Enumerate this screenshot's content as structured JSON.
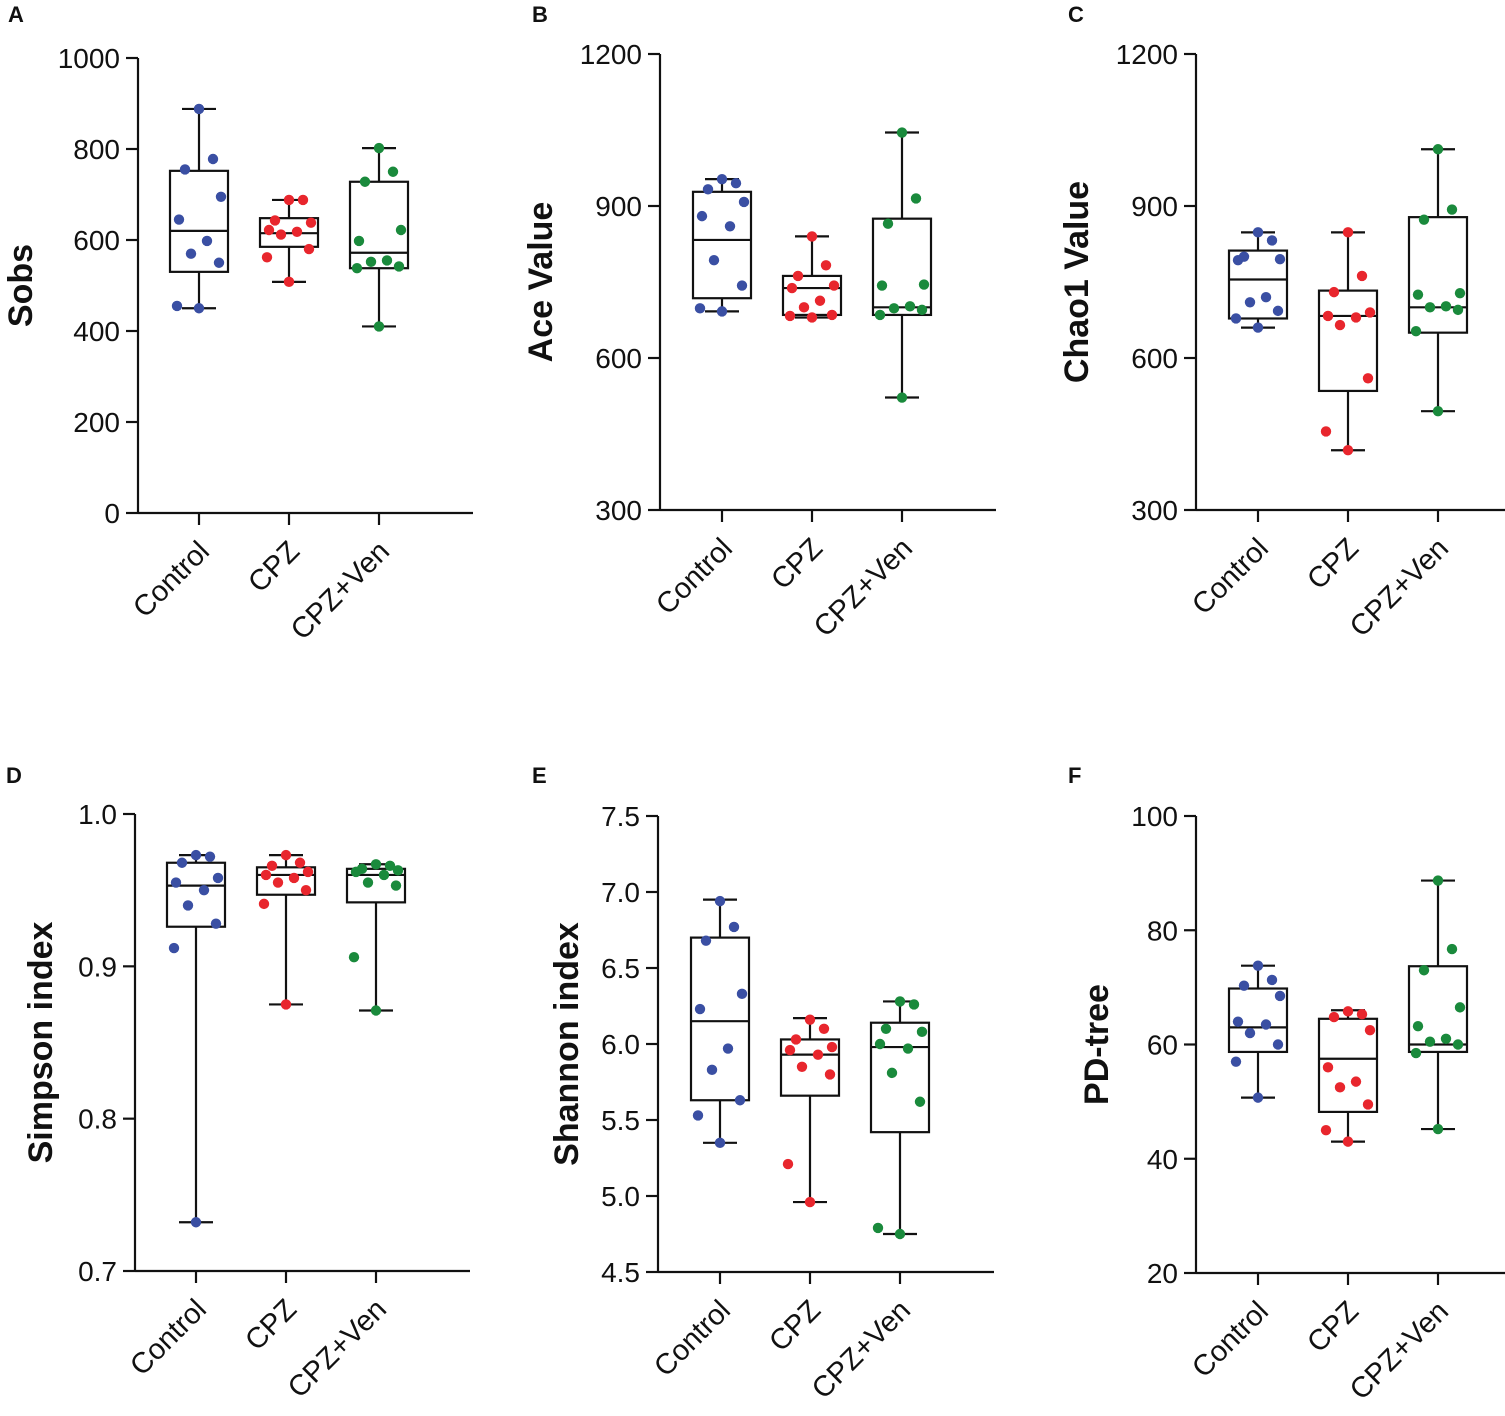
{
  "figure": {
    "categories": [
      "Control",
      "CPZ",
      "CPZ+Ven"
    ],
    "colors": {
      "Control": "#3a4fa3",
      "CPZ": "#e8262d",
      "CPZ+Ven": "#1a8a3c"
    }
  },
  "chart_data": [
    {
      "type": "box",
      "panel": "A",
      "ylabel": "Sobs",
      "ylim": [
        0,
        1000
      ],
      "yticks": [
        0,
        200,
        400,
        600,
        800,
        1000
      ],
      "yticklabels": [
        "0",
        "200",
        "400",
        "600",
        "800",
        "1000"
      ],
      "categories": [
        "Control",
        "CPZ",
        "CPZ+Ven"
      ],
      "series": [
        {
          "name": "Control",
          "box": {
            "min": 450,
            "q1": 530,
            "median": 620,
            "q3": 752,
            "max": 888
          },
          "points": [
            888,
            778,
            755,
            695,
            645,
            598,
            570,
            550,
            455,
            450
          ]
        },
        {
          "name": "CPZ",
          "box": {
            "min": 508,
            "q1": 585,
            "median": 615,
            "q3": 648,
            "max": 688
          },
          "points": [
            688,
            688,
            643,
            638,
            622,
            618,
            612,
            580,
            562,
            508
          ]
        },
        {
          "name": "CPZ+Ven",
          "box": {
            "min": 410,
            "q1": 538,
            "median": 572,
            "q3": 728,
            "max": 802
          },
          "points": [
            802,
            750,
            728,
            622,
            598,
            555,
            552,
            542,
            538,
            410
          ]
        }
      ]
    },
    {
      "type": "box",
      "panel": "B",
      "ylabel": "Ace Value",
      "ylim": [
        300,
        1200
      ],
      "yticks": [
        300,
        600,
        900,
        1200
      ],
      "yticklabels": [
        "300",
        "600",
        "900",
        "1200"
      ],
      "categories": [
        "Control",
        "CPZ",
        "CPZ+Ven"
      ],
      "series": [
        {
          "name": "Control",
          "box": {
            "min": 692,
            "q1": 718,
            "median": 833,
            "q3": 928,
            "max": 953
          },
          "points": [
            953,
            945,
            933,
            908,
            880,
            860,
            793,
            743,
            698,
            692
          ]
        },
        {
          "name": "CPZ",
          "box": {
            "min": 680,
            "q1": 685,
            "median": 738,
            "q3": 762,
            "max": 840
          },
          "points": [
            840,
            783,
            762,
            743,
            738,
            713,
            700,
            685,
            683,
            680
          ]
        },
        {
          "name": "CPZ+Ven",
          "box": {
            "min": 522,
            "q1": 685,
            "median": 700,
            "q3": 875,
            "max": 1045
          },
          "points": [
            1045,
            915,
            865,
            745,
            743,
            702,
            698,
            695,
            685,
            522
          ]
        }
      ]
    },
    {
      "type": "box",
      "panel": "C",
      "ylabel": "Chao1 Value",
      "ylim": [
        300,
        1200
      ],
      "yticks": [
        300,
        600,
        900,
        1200
      ],
      "yticklabels": [
        "300",
        "600",
        "900",
        "1200"
      ],
      "categories": [
        "Control",
        "CPZ",
        "CPZ+Ven"
      ],
      "series": [
        {
          "name": "Control",
          "box": {
            "min": 660,
            "q1": 678,
            "median": 755,
            "q3": 812,
            "max": 848
          },
          "points": [
            848,
            832,
            800,
            795,
            793,
            720,
            710,
            693,
            678,
            660
          ]
        },
        {
          "name": "CPZ",
          "box": {
            "min": 418,
            "q1": 535,
            "median": 683,
            "q3": 733,
            "max": 848
          },
          "points": [
            848,
            762,
            730,
            690,
            683,
            680,
            665,
            560,
            455,
            418
          ]
        },
        {
          "name": "CPZ+Ven",
          "box": {
            "min": 495,
            "q1": 650,
            "median": 700,
            "q3": 878,
            "max": 1012
          },
          "points": [
            1012,
            893,
            873,
            728,
            725,
            702,
            700,
            695,
            653,
            495
          ]
        }
      ]
    },
    {
      "type": "box",
      "panel": "D",
      "ylabel": "Simpson index",
      "ylim": [
        0.7,
        1.0
      ],
      "yticks": [
        0.7,
        0.8,
        0.9,
        1.0
      ],
      "yticklabels": [
        "0.7",
        "0.8",
        "0.9",
        "1.0"
      ],
      "categories": [
        "Control",
        "CPZ",
        "CPZ+Ven"
      ],
      "series": [
        {
          "name": "Control",
          "box": {
            "min": 0.732,
            "q1": 0.926,
            "median": 0.953,
            "q3": 0.968,
            "max": 0.973
          },
          "points": [
            0.973,
            0.972,
            0.968,
            0.958,
            0.955,
            0.95,
            0.94,
            0.928,
            0.912,
            0.732
          ]
        },
        {
          "name": "CPZ",
          "box": {
            "min": 0.875,
            "q1": 0.947,
            "median": 0.96,
            "q3": 0.965,
            "max": 0.973
          },
          "points": [
            0.973,
            0.968,
            0.966,
            0.962,
            0.96,
            0.958,
            0.955,
            0.95,
            0.941,
            0.875
          ]
        },
        {
          "name": "CPZ+Ven",
          "box": {
            "min": 0.871,
            "q1": 0.942,
            "median": 0.96,
            "q3": 0.964,
            "max": 0.967
          },
          "points": [
            0.967,
            0.966,
            0.964,
            0.963,
            0.962,
            0.96,
            0.955,
            0.953,
            0.906,
            0.871
          ]
        }
      ]
    },
    {
      "type": "box",
      "panel": "E",
      "ylabel": "Shannon index",
      "ylim": [
        4.5,
        7.5
      ],
      "yticks": [
        4.5,
        5.0,
        5.5,
        6.0,
        6.5,
        7.0,
        7.5
      ],
      "yticklabels": [
        "4.5",
        "5.0",
        "5.5",
        "6.0",
        "6.5",
        "7.0",
        "7.5"
      ],
      "categories": [
        "Control",
        "CPZ",
        "CPZ+Ven"
      ],
      "series": [
        {
          "name": "Control",
          "box": {
            "min": 5.35,
            "q1": 5.63,
            "median": 6.15,
            "q3": 6.7,
            "max": 6.95
          },
          "points": [
            6.94,
            6.77,
            6.68,
            6.33,
            6.23,
            5.97,
            5.83,
            5.63,
            5.53,
            5.35
          ]
        },
        {
          "name": "CPZ",
          "box": {
            "min": 4.96,
            "q1": 5.66,
            "median": 5.93,
            "q3": 6.03,
            "max": 6.17
          },
          "points": [
            6.16,
            6.1,
            6.03,
            5.98,
            5.96,
            5.93,
            5.85,
            5.8,
            5.21,
            4.96
          ]
        },
        {
          "name": "CPZ+Ven",
          "box": {
            "min": 4.75,
            "q1": 5.42,
            "median": 5.98,
            "q3": 6.14,
            "max": 6.28
          },
          "points": [
            6.28,
            6.26,
            6.1,
            6.08,
            6.0,
            5.97,
            5.81,
            5.62,
            4.79,
            4.75
          ]
        }
      ]
    },
    {
      "type": "box",
      "panel": "F",
      "ylabel": "PD-tree",
      "ylim": [
        20,
        100
      ],
      "yticks": [
        20,
        40,
        60,
        80,
        100
      ],
      "yticklabels": [
        "20",
        "40",
        "60",
        "80",
        "100"
      ],
      "categories": [
        "Control",
        "CPZ",
        "CPZ+Ven"
      ],
      "series": [
        {
          "name": "Control",
          "box": {
            "min": 50.7,
            "q1": 58.7,
            "median": 63.0,
            "q3": 69.8,
            "max": 73.8
          },
          "points": [
            73.8,
            71.3,
            70.3,
            68.5,
            64.0,
            63.5,
            62.0,
            60.0,
            57.0,
            50.7
          ]
        },
        {
          "name": "CPZ",
          "box": {
            "min": 43.0,
            "q1": 48.2,
            "median": 57.5,
            "q3": 64.5,
            "max": 66.0
          },
          "points": [
            65.8,
            65.3,
            64.8,
            62.5,
            56.0,
            53.5,
            52.5,
            49.5,
            45.0,
            43.0
          ]
        },
        {
          "name": "CPZ+Ven",
          "box": {
            "min": 45.2,
            "q1": 58.7,
            "median": 60.0,
            "q3": 73.7,
            "max": 88.7
          },
          "points": [
            88.7,
            76.7,
            73.0,
            66.5,
            63.2,
            61.0,
            60.5,
            60.0,
            58.5,
            45.2
          ]
        }
      ]
    }
  ]
}
